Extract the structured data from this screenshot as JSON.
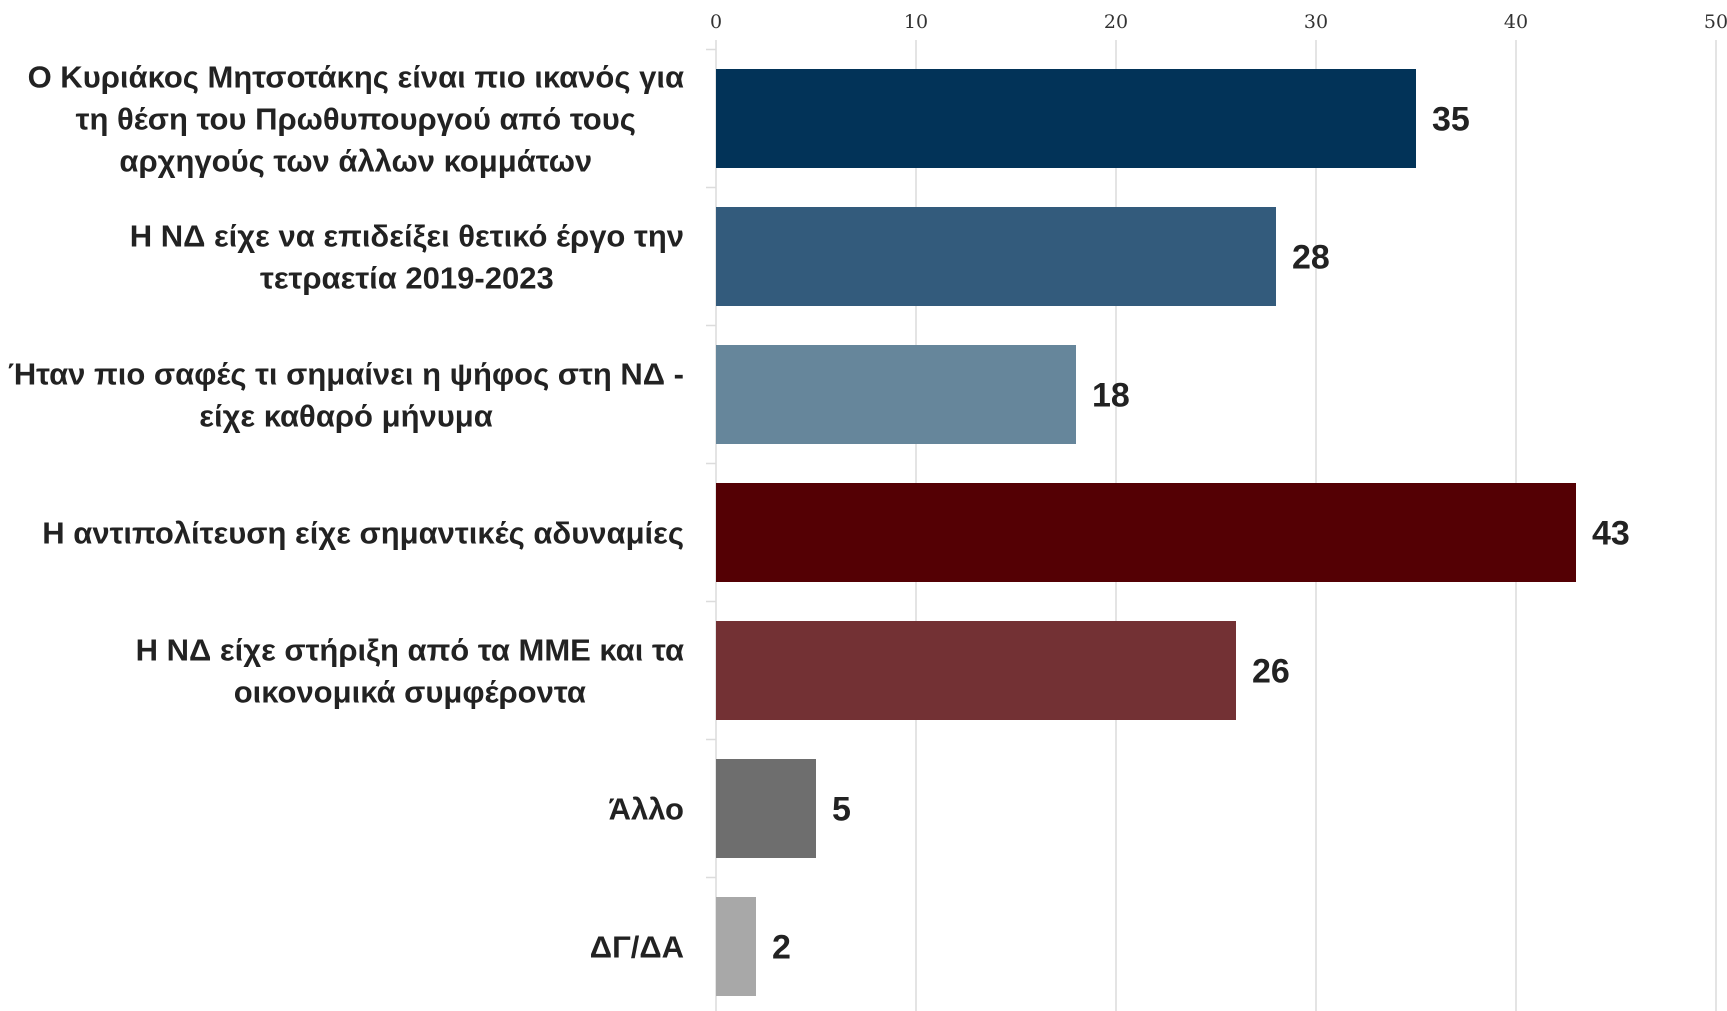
{
  "chart_data": {
    "type": "bar",
    "orientation": "horizontal",
    "categories": [
      [
        "Ο Κυριάκος Μητσοτάκης είναι πιο ικανός για",
        "τη θέση του Πρωθυπουργού από τους",
        "αρχηγούς των άλλων κομμάτων"
      ],
      [
        "Η ΝΔ είχε να επιδείξει θετικό έργο την",
        "τετραετία 2019-2023"
      ],
      [
        "Ήταν πιο σαφές τι σημαίνει η ψήφος στη ΝΔ -",
        "είχε καθαρό μήνυμα"
      ],
      [
        "Η αντιπολίτευση είχε σημαντικές αδυναμίες"
      ],
      [
        "Η ΝΔ είχε στήριξη από τα ΜΜΕ και τα",
        "οικονομικά συμφέροντα"
      ],
      [
        "Άλλο"
      ],
      [
        "ΔΓ/ΔΑ"
      ]
    ],
    "values": [
      35,
      28,
      18,
      43,
      26,
      5,
      2
    ],
    "value_labels": [
      "35",
      "28",
      "18",
      "43",
      "26",
      "5",
      "2"
    ],
    "colors": [
      "#023358",
      "#335b7c",
      "#66869b",
      "#540004",
      "#733134",
      "#6e6e6e",
      "#a8a8a8"
    ],
    "xlim": [
      0,
      50
    ],
    "xticks": [
      0,
      10,
      20,
      30,
      40,
      50
    ],
    "xtick_labels": [
      "0",
      "10",
      "20",
      "30",
      "40",
      "50"
    ],
    "xaxis_position": "top",
    "grid": "vertical",
    "title": "",
    "xlabel": "",
    "ylabel": ""
  }
}
